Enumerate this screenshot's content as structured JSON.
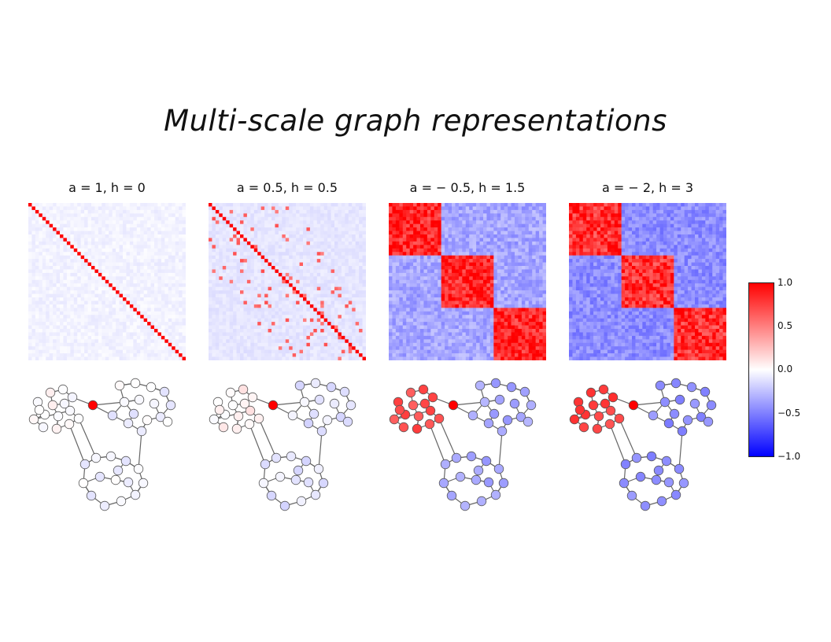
{
  "title": "Multi-scale graph representations",
  "panels": [
    {
      "label": "a = 1, h = 0"
    },
    {
      "label": "a = 0.5, h = 0.5"
    },
    {
      "label": "a = − 0.5, h = 1.5"
    },
    {
      "label": "a = − 2, h = 3"
    }
  ],
  "colorbar": {
    "colormap": "coolwarm-like (blue–white–red)",
    "range": [
      -1.0,
      1.0
    ],
    "ticks": [
      "1.0",
      "0.5",
      "0.0",
      "−0.5",
      "−1.0"
    ],
    "colors": {
      "low": "#0000ff",
      "mid": "#ffffff",
      "high": "#ff0000"
    }
  },
  "chart_data": [
    {
      "type": "heatmap",
      "title": "a = 1, h = 0",
      "n": 45,
      "diagonal": 1.0,
      "off_diagonal": -0.05,
      "vrange": [
        -1,
        1
      ]
    },
    {
      "type": "heatmap",
      "title": "a = 0.5, h = 0.5",
      "n": 45,
      "diagonal": 1.0,
      "off_diagonal": -0.1,
      "scattered_positive": 0.5,
      "vrange": [
        -1,
        1
      ]
    },
    {
      "type": "heatmap",
      "title": "a = − 0.5, h = 1.5",
      "n": 45,
      "blocks": 3,
      "in_block": 0.85,
      "between_block": -0.35,
      "vrange": [
        -1,
        1
      ]
    },
    {
      "type": "heatmap",
      "title": "a = − 2, h = 3",
      "n": 45,
      "blocks": 3,
      "in_block": 0.8,
      "between_block": -0.45,
      "vrange": [
        -1,
        1
      ]
    },
    {
      "type": "graph",
      "panel": "a = 1, h = 0",
      "nodes": 45,
      "clusters": 3,
      "source_value": 1.0,
      "cluster_values": [
        0.0,
        -0.05,
        -0.05
      ]
    },
    {
      "type": "graph",
      "panel": "a = 0.5, h = 0.5",
      "nodes": 45,
      "clusters": 3,
      "source_value": 1.0,
      "cluster_values": [
        0.05,
        -0.1,
        -0.1
      ]
    },
    {
      "type": "graph",
      "panel": "a = − 0.5, h = 1.5",
      "nodes": 45,
      "clusters": 3,
      "source_value": 1.0,
      "cluster_values": [
        0.7,
        -0.35,
        -0.35
      ]
    },
    {
      "type": "graph",
      "panel": "a = − 2, h = 3",
      "nodes": 45,
      "clusters": 3,
      "source_value": 1.0,
      "cluster_values": [
        0.75,
        -0.45,
        -0.45
      ]
    }
  ]
}
